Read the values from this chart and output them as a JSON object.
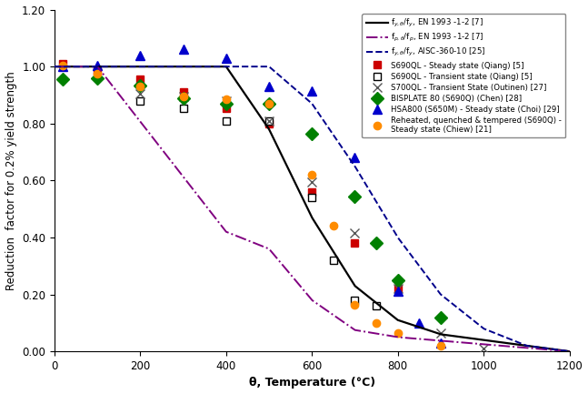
{
  "xlabel": "θ, Temperature (°C)",
  "ylabel": "Reduction  factor for 0.2% yield strength",
  "xlim": [
    0,
    1200
  ],
  "ylim": [
    0,
    1.2
  ],
  "yticks": [
    0.0,
    0.2,
    0.4,
    0.6,
    0.8,
    1.0,
    1.2
  ],
  "xticks": [
    0,
    200,
    400,
    600,
    800,
    1000,
    1200
  ],
  "EN1993_fy": {
    "color": "#000000",
    "lw": 1.6,
    "ls": "-",
    "label": "f$_{y, θ}$/f$_{y}$, EN 1993 -1-2 [7]"
  },
  "EN1993_fp": {
    "color": "#800080",
    "lw": 1.4,
    "ls": "-.",
    "label": "f$_{p, θ}$/f$_{p}$, EN 1993 -1-2 [7]"
  },
  "AISC_fy": {
    "color": "#00008B",
    "lw": 1.4,
    "ls": "--",
    "label": "f$_{y, θ}$/f$_{y}$, AISC-360-10 [25]"
  },
  "S690QL_steady_Qiang": {
    "T": [
      20,
      100,
      200,
      300,
      400,
      500,
      600,
      700,
      800
    ],
    "k": [
      1.01,
      0.985,
      0.955,
      0.91,
      0.855,
      0.8,
      0.56,
      0.38,
      0.22
    ],
    "color": "#CC0000",
    "marker": "s",
    "filled": true,
    "ms": 6,
    "label": "S690QL - Steady state (Qiang) [5]"
  },
  "S690QL_transient_Qiang": {
    "T": [
      200,
      300,
      400,
      500,
      600,
      650,
      700,
      750
    ],
    "k": [
      0.88,
      0.855,
      0.81,
      0.81,
      0.54,
      0.32,
      0.18,
      0.16
    ],
    "color": "#000000",
    "marker": "s",
    "filled": false,
    "ms": 6,
    "label": "S690QL - Transient state (Qiang) [5]"
  },
  "S700QL_transient_Outinen": {
    "T": [
      200,
      300,
      400,
      500,
      600,
      700,
      800,
      900,
      1000
    ],
    "k": [
      0.905,
      0.895,
      0.88,
      0.81,
      0.595,
      0.415,
      0.22,
      0.065,
      0.01
    ],
    "color": "#555555",
    "marker": "x",
    "filled": true,
    "ms": 7,
    "label": "S700QL - Transient State (Outinen) [27]"
  },
  "BISPLATE80_Chen": {
    "T": [
      20,
      100,
      200,
      300,
      400,
      500,
      600,
      700,
      750,
      800,
      900
    ],
    "k": [
      0.955,
      0.96,
      0.935,
      0.89,
      0.87,
      0.87,
      0.765,
      0.545,
      0.38,
      0.25,
      0.12
    ],
    "color": "#008000",
    "marker": "D",
    "filled": true,
    "ms": 7,
    "label": "BISPLATE 80 (S690Q) (Chen) [28]"
  },
  "HSA800_Choi": {
    "T": [
      20,
      100,
      200,
      300,
      400,
      500,
      600,
      700,
      800,
      850,
      900
    ],
    "k": [
      1.0,
      1.005,
      1.04,
      1.06,
      1.03,
      0.93,
      0.915,
      0.68,
      0.21,
      0.1,
      0.03
    ],
    "color": "#0000CC",
    "marker": "^",
    "filled": true,
    "ms": 7,
    "label": "HSA800 (S650M) - Steady state (Choi) [29]"
  },
  "Reheated_Chiew": {
    "T": [
      20,
      100,
      200,
      300,
      400,
      500,
      600,
      650,
      700,
      750,
      800,
      900
    ],
    "k": [
      1.005,
      0.975,
      0.93,
      0.895,
      0.885,
      0.87,
      0.62,
      0.44,
      0.165,
      0.1,
      0.065,
      0.02
    ],
    "color": "#FF8C00",
    "marker": "o",
    "filled": true,
    "ms": 6,
    "label": "Reheated, quenched & tempered (S690Q) -\nSteady state (Chiew) [21]"
  }
}
